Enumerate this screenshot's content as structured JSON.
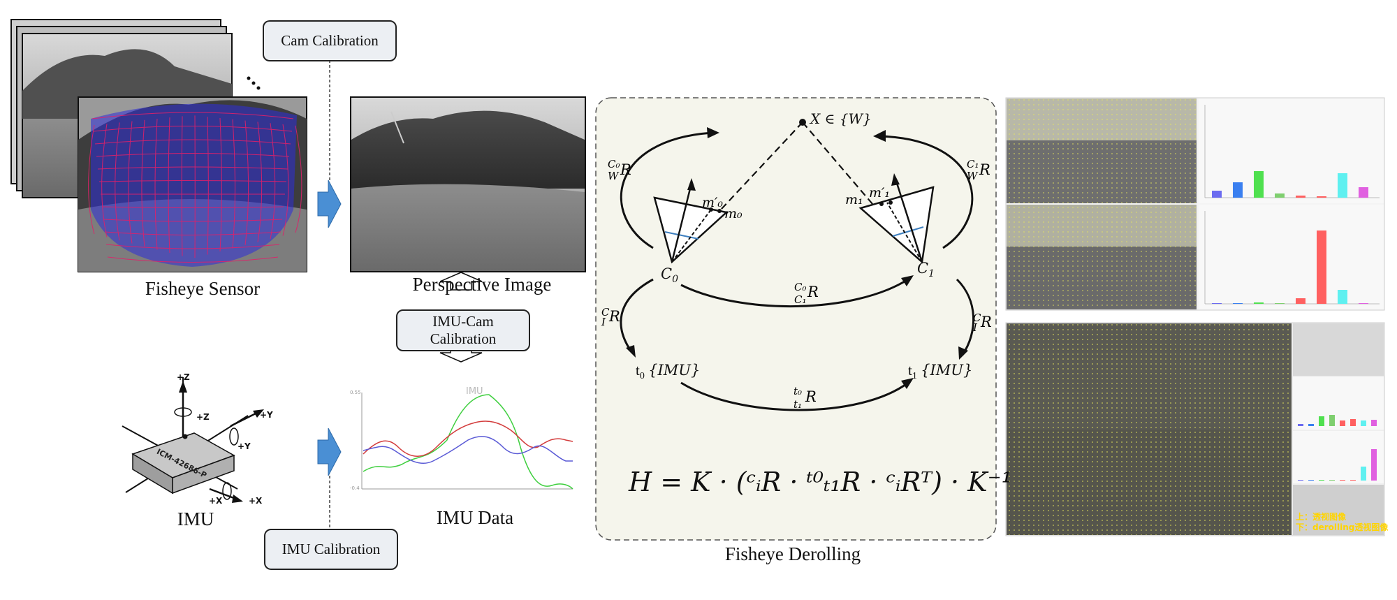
{
  "callouts": {
    "cam_calibration": "Cam Calibration",
    "imu_cam_calibration_line1": "IMU-Cam",
    "imu_cam_calibration_line2": "Calibration",
    "imu_calibration": "IMU Calibration"
  },
  "captions": {
    "fisheye_sensor": "Fisheye Sensor",
    "perspective_image": "Perspective Image",
    "imu": "IMU",
    "imu_data": "IMU Data",
    "fisheye_derolling": "Fisheye Derolling"
  },
  "imu_chip": {
    "label": "ICM-42686-P",
    "axes": [
      "+Z",
      "+Z",
      "+Y",
      "+Y",
      "+X",
      "+X"
    ]
  },
  "imu_plot": {
    "title": "IMU",
    "ytick_top": "0.55",
    "ytick_bottom": "-0.4",
    "series_colors": [
      "#d33c3c",
      "#5a5ad6",
      "#3fcf3f"
    ]
  },
  "derolling": {
    "world_point": "X ∈ {W}",
    "c0": "C",
    "c0_sub": "0",
    "c1": "C",
    "c1_sub": "1",
    "m0": "m",
    "m1": "m",
    "t0_imu": "t",
    "t1_imu": "t",
    "imu_tag": "{IMU}",
    "formula": "H = K · (ᶜᵢR · ᵗ⁰ₜ₁R · ᶜᵢRᵀ) · K⁻¹"
  },
  "result_panel": {
    "note_line1": "上：透视图像",
    "note_line2": "下：derolling透视图像"
  },
  "colors": {
    "arrow_blue": "#4a8fd4",
    "grid_blue": "#2020e0",
    "grid_red": "#e02060",
    "derolling_bg": "#f5f5ec",
    "bar_colors": [
      "#6b6bf0",
      "#3a7ff0",
      "#4fe04f",
      "#7fcf6f",
      "#ff6060",
      "#ff6060",
      "#5ff0f0",
      "#e060e0"
    ]
  }
}
